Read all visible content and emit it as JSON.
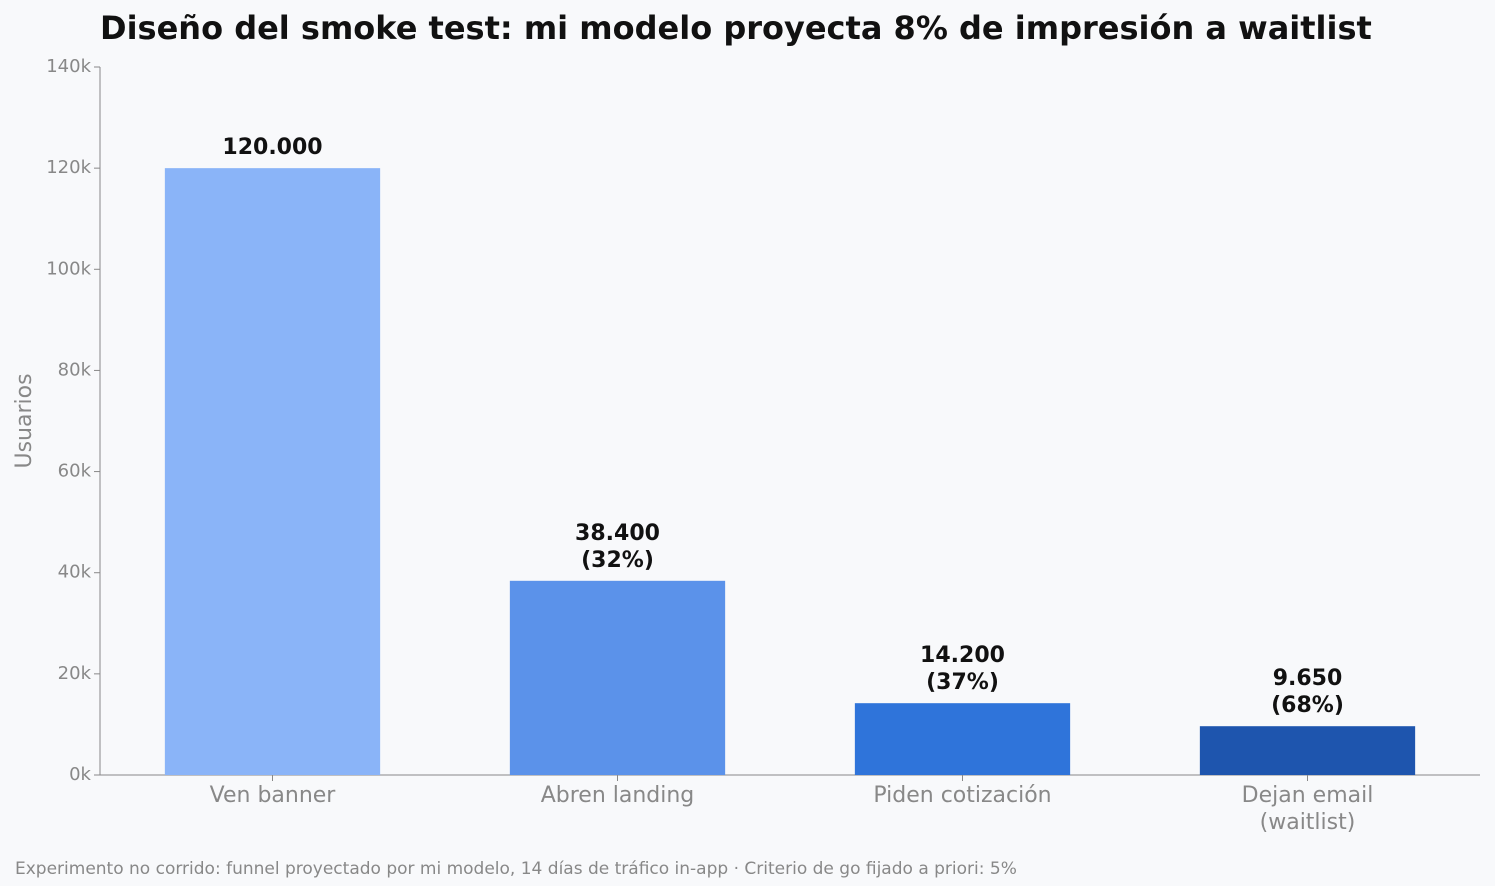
{
  "chart_data": {
    "type": "bar",
    "title": "Diseño del smoke test: mi modelo proyecta 8% de impresión a waitlist",
    "ylabel": "Usuarios",
    "footnote": "Experimento no corrido: funnel proyectado por mi modelo, 14 días de tráfico in-app · Criterio de go fijado a priori: 5%",
    "categories": [
      "Ven banner",
      "Abren landing",
      "Piden cotización",
      "Dejan email\n(waitlist)"
    ],
    "values": [
      120000,
      38400,
      14200,
      9650
    ],
    "value_labels": [
      "120.000",
      "38.400\n(32%)",
      "14.200\n(37%)",
      "9.650\n(68%)"
    ],
    "colors": [
      "#8ab4f8",
      "#5b92ea",
      "#2f74da",
      "#1e55ae"
    ],
    "ylim": [
      0,
      140000
    ],
    "yticks": [
      {
        "value": 0,
        "label": "0k"
      },
      {
        "value": 20000,
        "label": "20k"
      },
      {
        "value": 40000,
        "label": "40k"
      },
      {
        "value": 60000,
        "label": "60k"
      },
      {
        "value": 80000,
        "label": "80k"
      },
      {
        "value": 100000,
        "label": "100k"
      },
      {
        "value": 120000,
        "label": "120k"
      },
      {
        "value": 140000,
        "label": "140k"
      }
    ],
    "grid": false
  }
}
